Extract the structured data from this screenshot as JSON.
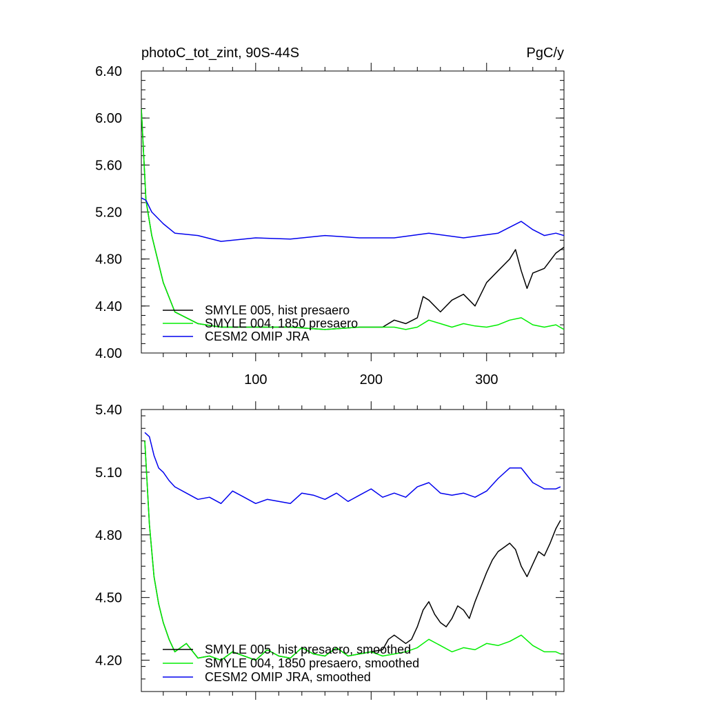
{
  "chart_data": [
    {
      "type": "line",
      "title": "photoC_tot_zint, 90S-44S",
      "units": "PgC/y",
      "xlim": [
        1,
        367
      ],
      "ylim": [
        4.0,
        6.4
      ],
      "xticks": [
        100,
        200,
        300
      ],
      "xtick_labels": [
        "100",
        "200",
        "300"
      ],
      "yticks": [
        4.0,
        4.4,
        4.8,
        5.2,
        5.6,
        6.0,
        6.4
      ],
      "ytick_labels": [
        "4.00",
        "4.40",
        "4.80",
        "5.20",
        "5.60",
        "6.00",
        "6.40"
      ],
      "legend_position": "bottom-left",
      "series": [
        {
          "name": "SMYLE 005, hist presaero",
          "color": "#000000",
          "x": [
            1,
            5,
            10,
            20,
            30,
            50,
            70,
            100,
            130,
            160,
            190,
            210,
            220,
            230,
            240,
            245,
            250,
            260,
            270,
            280,
            290,
            300,
            310,
            320,
            325,
            330,
            335,
            340,
            350,
            360,
            367
          ],
          "y": [
            6.08,
            5.3,
            5.0,
            4.6,
            4.35,
            4.25,
            4.22,
            4.22,
            4.22,
            4.2,
            4.22,
            4.22,
            4.28,
            4.25,
            4.3,
            4.48,
            4.45,
            4.35,
            4.45,
            4.5,
            4.4,
            4.6,
            4.7,
            4.8,
            4.88,
            4.7,
            4.55,
            4.68,
            4.72,
            4.85,
            4.9
          ]
        },
        {
          "name": "SMYLE 004, 1850 presaero",
          "color": "#00ee00",
          "x": [
            1,
            5,
            10,
            20,
            30,
            50,
            70,
            100,
            130,
            160,
            190,
            210,
            220,
            230,
            240,
            250,
            260,
            270,
            280,
            290,
            300,
            310,
            320,
            330,
            340,
            350,
            360,
            367
          ],
          "y": [
            6.08,
            5.3,
            5.0,
            4.6,
            4.35,
            4.25,
            4.22,
            4.22,
            4.22,
            4.2,
            4.22,
            4.22,
            4.22,
            4.2,
            4.22,
            4.28,
            4.25,
            4.22,
            4.25,
            4.23,
            4.22,
            4.24,
            4.28,
            4.3,
            4.24,
            4.22,
            4.24,
            4.2
          ]
        },
        {
          "name": "CESM2 OMIP JRA",
          "color": "#0000ee",
          "x": [
            1,
            5,
            10,
            20,
            30,
            50,
            70,
            100,
            130,
            160,
            190,
            220,
            250,
            280,
            310,
            330,
            340,
            350,
            360,
            367
          ],
          "y": [
            5.32,
            5.3,
            5.2,
            5.1,
            5.02,
            5.0,
            4.95,
            4.98,
            4.97,
            5.0,
            4.98,
            4.98,
            5.02,
            4.98,
            5.02,
            5.12,
            5.05,
            5.0,
            5.02,
            5.0
          ]
        }
      ]
    },
    {
      "type": "line",
      "xlim": [
        1,
        367
      ],
      "ylim": [
        4.05,
        5.4
      ],
      "xticks": [
        100,
        200,
        300
      ],
      "yticks": [
        4.2,
        4.5,
        4.8,
        5.1,
        5.4
      ],
      "ytick_labels": [
        "4.20",
        "4.50",
        "4.80",
        "5.10",
        "5.40"
      ],
      "legend_position": "bottom-left",
      "series": [
        {
          "name": "SMYLE 005, hist presaero, smoothed",
          "color": "#000000",
          "x": [
            4,
            8,
            12,
            16,
            20,
            25,
            30,
            40,
            50,
            60,
            70,
            80,
            90,
            100,
            110,
            120,
            130,
            140,
            150,
            160,
            170,
            180,
            190,
            200,
            210,
            215,
            220,
            225,
            230,
            235,
            240,
            245,
            250,
            255,
            260,
            265,
            270,
            275,
            280,
            285,
            290,
            295,
            300,
            305,
            310,
            315,
            320,
            325,
            330,
            335,
            340,
            345,
            350,
            355,
            360,
            364
          ],
          "y": [
            5.25,
            4.85,
            4.6,
            4.47,
            4.38,
            4.3,
            4.24,
            4.28,
            4.21,
            4.22,
            4.2,
            4.24,
            4.22,
            4.2,
            4.25,
            4.22,
            4.21,
            4.26,
            4.23,
            4.22,
            4.26,
            4.22,
            4.23,
            4.24,
            4.25,
            4.3,
            4.32,
            4.3,
            4.28,
            4.3,
            4.36,
            4.44,
            4.48,
            4.42,
            4.38,
            4.36,
            4.4,
            4.46,
            4.44,
            4.4,
            4.48,
            4.55,
            4.62,
            4.68,
            4.72,
            4.74,
            4.76,
            4.73,
            4.65,
            4.6,
            4.66,
            4.72,
            4.7,
            4.76,
            4.83,
            4.87
          ]
        },
        {
          "name": "SMYLE 004, 1850 presaero, smoothed",
          "color": "#00ee00",
          "x": [
            4,
            8,
            12,
            16,
            20,
            25,
            30,
            40,
            50,
            60,
            70,
            80,
            90,
            100,
            110,
            120,
            130,
            140,
            150,
            160,
            170,
            180,
            190,
            200,
            210,
            220,
            230,
            240,
            250,
            260,
            270,
            280,
            290,
            300,
            310,
            320,
            330,
            340,
            350,
            360,
            364
          ],
          "y": [
            5.25,
            4.85,
            4.6,
            4.47,
            4.38,
            4.3,
            4.24,
            4.28,
            4.21,
            4.22,
            4.2,
            4.24,
            4.22,
            4.2,
            4.25,
            4.22,
            4.21,
            4.26,
            4.23,
            4.22,
            4.26,
            4.22,
            4.23,
            4.24,
            4.22,
            4.23,
            4.24,
            4.26,
            4.3,
            4.27,
            4.24,
            4.26,
            4.25,
            4.28,
            4.27,
            4.29,
            4.32,
            4.27,
            4.24,
            4.24,
            4.23
          ]
        },
        {
          "name": "CESM2 OMIP JRA, smoothed",
          "color": "#0000ee",
          "x": [
            4,
            8,
            12,
            16,
            20,
            25,
            30,
            40,
            50,
            60,
            70,
            80,
            90,
            100,
            110,
            120,
            130,
            140,
            150,
            160,
            170,
            180,
            190,
            200,
            210,
            220,
            230,
            240,
            250,
            260,
            270,
            280,
            290,
            300,
            310,
            320,
            330,
            340,
            350,
            360,
            364
          ],
          "y": [
            5.29,
            5.27,
            5.18,
            5.12,
            5.1,
            5.06,
            5.03,
            5.0,
            4.97,
            4.98,
            4.95,
            5.01,
            4.98,
            4.95,
            4.97,
            4.96,
            4.95,
            5.0,
            4.99,
            4.97,
            5.0,
            4.96,
            4.99,
            5.02,
            4.98,
            5.0,
            4.98,
            5.03,
            5.05,
            5.0,
            4.99,
            5.0,
            4.98,
            5.01,
            5.07,
            5.12,
            5.12,
            5.05,
            5.02,
            5.02,
            5.03
          ]
        }
      ]
    }
  ]
}
